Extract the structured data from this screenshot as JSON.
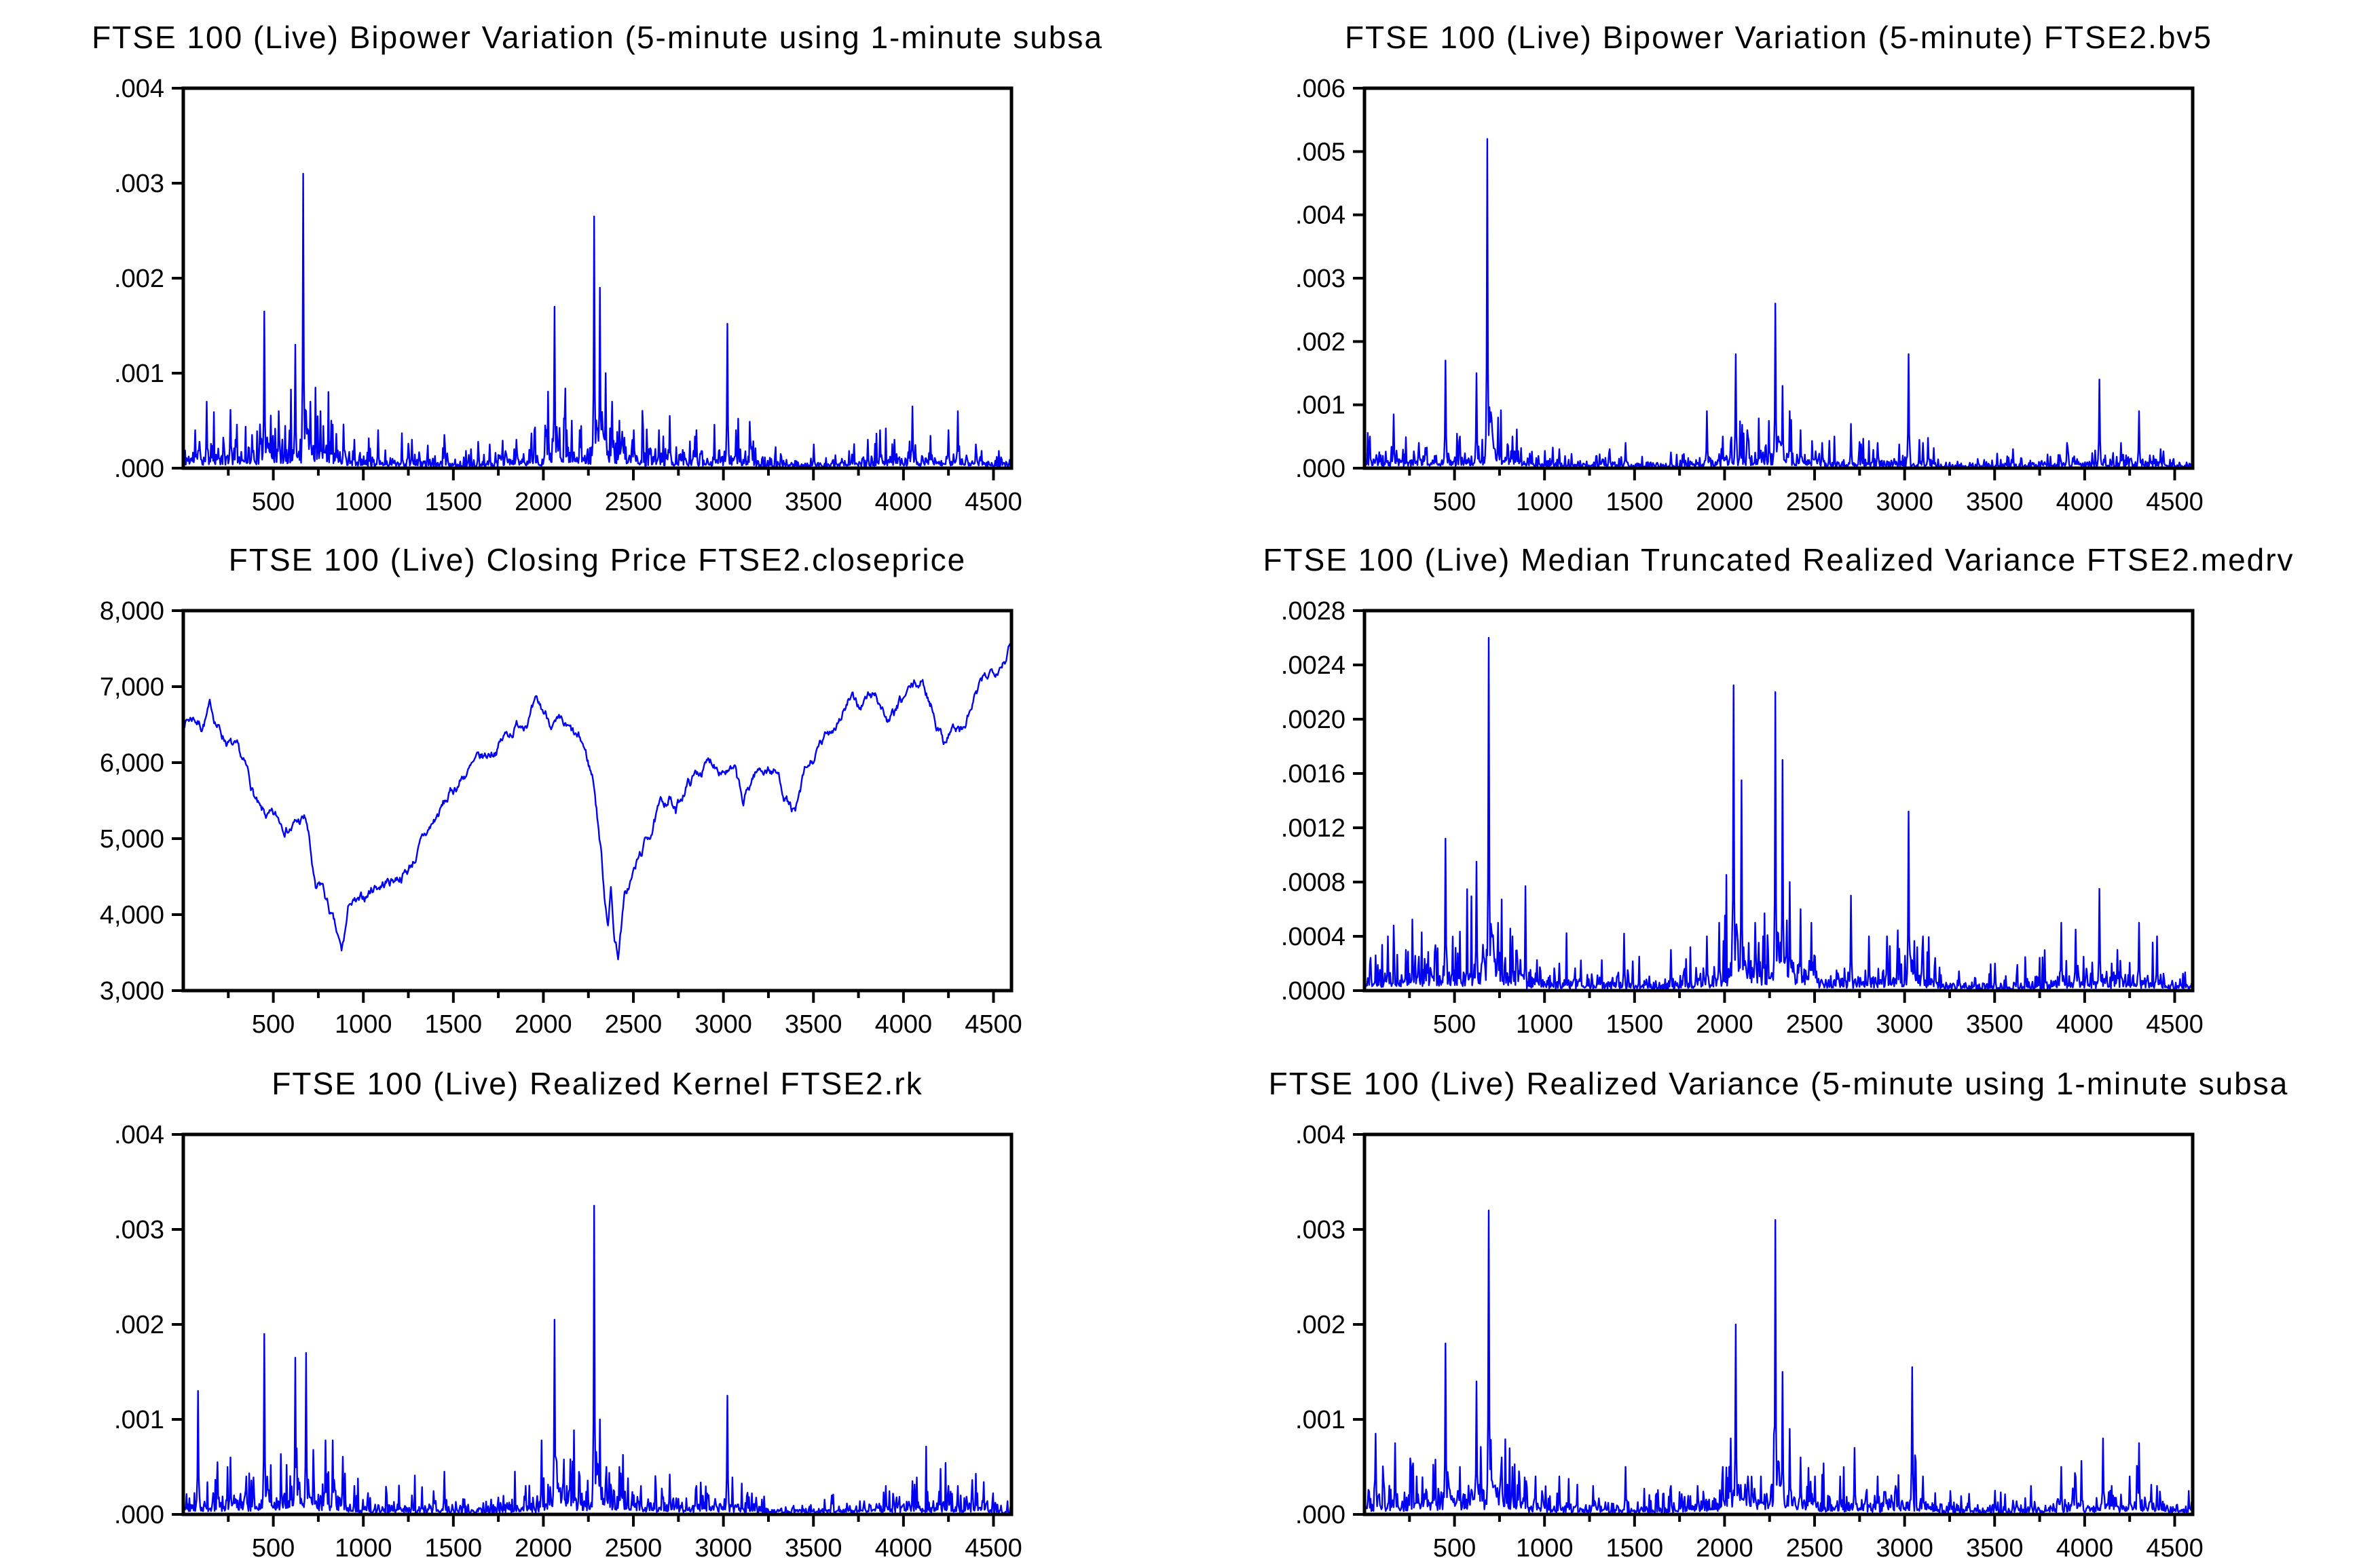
{
  "page": {
    "background": "#ffffff",
    "line_color": "#0202f2",
    "axis_color": "#000000"
  },
  "chart_data": [
    {
      "id": "bv5ss",
      "type": "line",
      "title": "FTSE 100 (Live) Bipower Variation (5-minute using 1-minute subsa",
      "xlabel": "",
      "ylabel": "",
      "xlim": [
        0,
        4600
      ],
      "ylim": [
        0,
        0.004
      ],
      "xticks": [
        500,
        1000,
        1500,
        2000,
        2500,
        3000,
        3500,
        4000,
        4500
      ],
      "yticks": [
        ".000",
        ".001",
        ".002",
        ".003",
        ".004"
      ],
      "grid": false,
      "legend": "none",
      "baseline": 5.5e-05,
      "seed": 11,
      "spikes": [
        [
          65,
          0.0004
        ],
        [
          130,
          0.0007
        ],
        [
          290,
          0.0003
        ],
        [
          380,
          0.00035
        ],
        [
          450,
          0.00165
        ],
        [
          530,
          0.0006
        ],
        [
          620,
          0.0013
        ],
        [
          665,
          0.0031
        ],
        [
          705,
          0.0007
        ],
        [
          760,
          0.0006
        ],
        [
          820,
          0.0005
        ],
        [
          950,
          0.0003
        ],
        [
          1080,
          0.0004
        ],
        [
          1270,
          0.0003
        ],
        [
          1450,
          0.00035
        ],
        [
          1700,
          0.00025
        ],
        [
          1850,
          0.0003
        ],
        [
          1950,
          0.0004
        ],
        [
          2010,
          0.00045
        ],
        [
          2060,
          0.0017
        ],
        [
          2130,
          0.0004
        ],
        [
          2200,
          0.0004
        ],
        [
          2280,
          0.00265
        ],
        [
          2312,
          0.0019
        ],
        [
          2345,
          0.001
        ],
        [
          2380,
          0.0007
        ],
        [
          2420,
          0.0005
        ],
        [
          2500,
          0.0004
        ],
        [
          2640,
          0.0004
        ],
        [
          2700,
          0.00055
        ],
        [
          2850,
          0.0004
        ],
        [
          2950,
          0.0003
        ],
        [
          3020,
          0.00152
        ],
        [
          3070,
          0.0004
        ],
        [
          3150,
          0.0003
        ],
        [
          3500,
          0.00025
        ],
        [
          3800,
          0.0003
        ],
        [
          3870,
          0.0004
        ],
        [
          3950,
          0.0003
        ],
        [
          4050,
          0.00065
        ],
        [
          4150,
          0.0003
        ],
        [
          4250,
          0.0004
        ],
        [
          4300,
          0.0006
        ],
        [
          4400,
          0.00025
        ]
      ]
    },
    {
      "id": "bv5",
      "type": "line",
      "title": "FTSE 100 (Live) Bipower Variation (5-minute) FTSE2.bv5",
      "xlabel": "",
      "ylabel": "",
      "xlim": [
        0,
        4600
      ],
      "ylim": [
        0,
        0.006
      ],
      "xticks": [
        500,
        1000,
        1500,
        2000,
        2500,
        3000,
        3500,
        4000,
        4500
      ],
      "yticks": [
        ".000",
        ".001",
        ".002",
        ".003",
        ".004",
        ".005",
        ".006"
      ],
      "grid": false,
      "legend": "none",
      "baseline": 5e-05,
      "seed": 23,
      "spikes": [
        [
          30,
          0.0005
        ],
        [
          160,
          0.00085
        ],
        [
          300,
          0.0004
        ],
        [
          450,
          0.0017
        ],
        [
          530,
          0.0005
        ],
        [
          620,
          0.0015
        ],
        [
          680,
          0.0052
        ],
        [
          740,
          0.0008
        ],
        [
          820,
          0.0005
        ],
        [
          1080,
          0.0003
        ],
        [
          1360,
          0.0003
        ],
        [
          1450,
          0.0004
        ],
        [
          1700,
          0.00025
        ],
        [
          1900,
          0.0009
        ],
        [
          1990,
          0.0005
        ],
        [
          2060,
          0.0018
        ],
        [
          2130,
          0.0005
        ],
        [
          2280,
          0.0026
        ],
        [
          2320,
          0.0013
        ],
        [
          2360,
          0.0009
        ],
        [
          2420,
          0.0006
        ],
        [
          2540,
          0.0004
        ],
        [
          2700,
          0.0007
        ],
        [
          2850,
          0.0004
        ],
        [
          3020,
          0.0018
        ],
        [
          3100,
          0.0004
        ],
        [
          3600,
          0.0003
        ],
        [
          3900,
          0.0004
        ],
        [
          4080,
          0.0014
        ],
        [
          4200,
          0.0004
        ],
        [
          4300,
          0.0009
        ],
        [
          4420,
          0.0003
        ]
      ]
    },
    {
      "id": "closeprice",
      "type": "line",
      "title": "FTSE 100 (Live) Closing Price FTSE2.closeprice",
      "xlabel": "",
      "ylabel": "",
      "xlim": [
        0,
        4600
      ],
      "ylim": [
        3000,
        8000
      ],
      "xticks": [
        500,
        1000,
        1500,
        2000,
        2500,
        3000,
        3500,
        4000,
        4500
      ],
      "yticks": [
        "3,000",
        "4,000",
        "5,000",
        "6,000",
        "7,000",
        "8,000"
      ],
      "grid": false,
      "legend": "none",
      "noise": 52,
      "seed": 7,
      "anchors": [
        [
          3,
          6550
        ],
        [
          60,
          6620
        ],
        [
          100,
          6500
        ],
        [
          150,
          6720
        ],
        [
          210,
          6400
        ],
        [
          260,
          6250
        ],
        [
          300,
          6100
        ],
        [
          360,
          5800
        ],
        [
          430,
          5300
        ],
        [
          500,
          5220
        ],
        [
          600,
          5180
        ],
        [
          680,
          5250
        ],
        [
          700,
          4950
        ],
        [
          735,
          4250
        ],
        [
          770,
          4350
        ],
        [
          830,
          3900
        ],
        [
          880,
          3450
        ],
        [
          925,
          4150
        ],
        [
          980,
          4100
        ],
        [
          1060,
          4380
        ],
        [
          1150,
          4450
        ],
        [
          1250,
          4600
        ],
        [
          1340,
          5000
        ],
        [
          1450,
          5450
        ],
        [
          1560,
          5850
        ],
        [
          1680,
          6050
        ],
        [
          1790,
          6350
        ],
        [
          1900,
          6600
        ],
        [
          1960,
          6720
        ],
        [
          2020,
          6600
        ],
        [
          2080,
          6480
        ],
        [
          2150,
          6350
        ],
        [
          2220,
          6200
        ],
        [
          2280,
          5750
        ],
        [
          2320,
          4850
        ],
        [
          2340,
          4250
        ],
        [
          2360,
          3950
        ],
        [
          2375,
          4350
        ],
        [
          2395,
          3700
        ],
        [
          2415,
          3500
        ],
        [
          2450,
          4200
        ],
        [
          2510,
          4600
        ],
        [
          2570,
          4950
        ],
        [
          2640,
          5350
        ],
        [
          2700,
          5570
        ],
        [
          2735,
          5320
        ],
        [
          2790,
          5700
        ],
        [
          2870,
          5900
        ],
        [
          2940,
          6020
        ],
        [
          3010,
          5960
        ],
        [
          3070,
          5820
        ],
        [
          3110,
          5420
        ],
        [
          3170,
          5850
        ],
        [
          3240,
          5950
        ],
        [
          3300,
          5850
        ],
        [
          3350,
          5550
        ],
        [
          3400,
          5300
        ],
        [
          3450,
          5800
        ],
        [
          3520,
          6100
        ],
        [
          3580,
          6350
        ],
        [
          3640,
          6600
        ],
        [
          3700,
          6820
        ],
        [
          3750,
          6720
        ],
        [
          3800,
          6850
        ],
        [
          3850,
          6900
        ],
        [
          3920,
          6520
        ],
        [
          3970,
          6700
        ],
        [
          4040,
          6950
        ],
        [
          4100,
          7050
        ],
        [
          4160,
          6750
        ],
        [
          4220,
          6300
        ],
        [
          4270,
          6500
        ],
        [
          4330,
          6400
        ],
        [
          4400,
          6850
        ],
        [
          4460,
          7100
        ],
        [
          4520,
          7300
        ],
        [
          4600,
          7560
        ]
      ]
    },
    {
      "id": "medrv",
      "type": "line",
      "title": "FTSE 100 (Live) Median Truncated Realized Variance FTSE2.medrv",
      "xlabel": "",
      "ylabel": "",
      "xlim": [
        0,
        4600
      ],
      "ylim": [
        0,
        0.0028
      ],
      "xticks": [
        500,
        1000,
        1500,
        2000,
        2500,
        3000,
        3500,
        4000,
        4500
      ],
      "yticks": [
        ".0000",
        ".0004",
        ".0008",
        ".0012",
        ".0016",
        ".0020",
        ".0024",
        ".0028"
      ],
      "grid": false,
      "legend": "none",
      "baseline": 4.5e-05,
      "seed": 37,
      "spikes": [
        [
          130,
          0.0004
        ],
        [
          230,
          0.0003
        ],
        [
          300,
          0.00025
        ],
        [
          450,
          0.00112
        ],
        [
          530,
          0.0003
        ],
        [
          620,
          0.00095
        ],
        [
          690,
          0.0026
        ],
        [
          740,
          0.0005
        ],
        [
          820,
          0.0004
        ],
        [
          1080,
          0.0002
        ],
        [
          1440,
          0.00042
        ],
        [
          1700,
          0.0003
        ],
        [
          1900,
          0.0004
        ],
        [
          1970,
          0.0005
        ],
        [
          2050,
          0.00225
        ],
        [
          2095,
          0.00155
        ],
        [
          2170,
          0.0005
        ],
        [
          2280,
          0.0022
        ],
        [
          2320,
          0.0017
        ],
        [
          2360,
          0.0008
        ],
        [
          2420,
          0.0006
        ],
        [
          2480,
          0.0005
        ],
        [
          2700,
          0.0007
        ],
        [
          2800,
          0.0004
        ],
        [
          2900,
          0.0004
        ],
        [
          3020,
          0.00132
        ],
        [
          3100,
          0.0004
        ],
        [
          3500,
          0.0002
        ],
        [
          3870,
          0.0005
        ],
        [
          3950,
          0.00045
        ],
        [
          4080,
          0.00075
        ],
        [
          4180,
          0.0003
        ],
        [
          4300,
          0.0005
        ],
        [
          4400,
          0.0004
        ]
      ]
    },
    {
      "id": "rk",
      "type": "line",
      "title": "FTSE 100 (Live) Realized Kernel FTSE2.rk",
      "xlabel": "",
      "ylabel": "",
      "xlim": [
        0,
        4600
      ],
      "ylim": [
        0,
        0.004
      ],
      "xticks": [
        500,
        1000,
        1500,
        2000,
        2500,
        3000,
        3500,
        4000,
        4500
      ],
      "yticks": [
        ".000",
        ".001",
        ".002",
        ".003",
        ".004"
      ],
      "grid": false,
      "legend": "none",
      "baseline": 5e-05,
      "seed": 51,
      "spikes": [
        [
          80,
          0.0013
        ],
        [
          190,
          0.00055
        ],
        [
          260,
          0.0006
        ],
        [
          350,
          0.0004
        ],
        [
          450,
          0.0019
        ],
        [
          540,
          0.0004
        ],
        [
          620,
          0.00165
        ],
        [
          680,
          0.0017
        ],
        [
          790,
          0.00078
        ],
        [
          830,
          0.00078
        ],
        [
          950,
          0.0003
        ],
        [
          1270,
          0.0002
        ],
        [
          1450,
          0.00045
        ],
        [
          1900,
          0.0003
        ],
        [
          1990,
          0.00078
        ],
        [
          2060,
          0.00205
        ],
        [
          2130,
          0.0003
        ],
        [
          2200,
          0.0004
        ],
        [
          2280,
          0.00325
        ],
        [
          2315,
          0.001
        ],
        [
          2350,
          0.0005
        ],
        [
          2420,
          0.0005
        ],
        [
          2540,
          0.0003
        ],
        [
          2700,
          0.00042
        ],
        [
          2850,
          0.0003
        ],
        [
          3020,
          0.00125
        ],
        [
          3100,
          0.0002
        ],
        [
          3600,
          0.0002
        ],
        [
          3900,
          0.0003
        ],
        [
          4050,
          0.00035
        ],
        [
          4250,
          0.0003
        ],
        [
          4300,
          0.0003
        ]
      ]
    },
    {
      "id": "rv5ss",
      "type": "line",
      "title": "FTSE 100 (Live) Realized Variance (5-minute using 1-minute subsa",
      "xlabel": "",
      "ylabel": "",
      "xlim": [
        0,
        4600
      ],
      "ylim": [
        0,
        0.004
      ],
      "xticks": [
        500,
        1000,
        1500,
        2000,
        2500,
        3000,
        3500,
        4000,
        4500
      ],
      "yticks": [
        ".000",
        ".001",
        ".002",
        ".003",
        ".004"
      ],
      "grid": false,
      "legend": "none",
      "baseline": 6e-05,
      "seed": 63,
      "spikes": [
        [
          60,
          0.00085
        ],
        [
          170,
          0.00075
        ],
        [
          290,
          0.0004
        ],
        [
          380,
          0.0004
        ],
        [
          450,
          0.0018
        ],
        [
          530,
          0.0005
        ],
        [
          620,
          0.0014
        ],
        [
          690,
          0.0032
        ],
        [
          760,
          0.0006
        ],
        [
          820,
          0.0005
        ],
        [
          950,
          0.0004
        ],
        [
          1080,
          0.0004
        ],
        [
          1270,
          0.0003
        ],
        [
          1450,
          0.0005
        ],
        [
          1700,
          0.0003
        ],
        [
          1850,
          0.0003
        ],
        [
          1990,
          0.0005
        ],
        [
          2035,
          0.0008
        ],
        [
          2060,
          0.002
        ],
        [
          2130,
          0.0004
        ],
        [
          2200,
          0.0004
        ],
        [
          2280,
          0.0031
        ],
        [
          2320,
          0.0015
        ],
        [
          2360,
          0.0009
        ],
        [
          2420,
          0.0006
        ],
        [
          2500,
          0.0004
        ],
        [
          2640,
          0.0004
        ],
        [
          2720,
          0.0007
        ],
        [
          2850,
          0.0004
        ],
        [
          2950,
          0.0003
        ],
        [
          3040,
          0.00155
        ],
        [
          3100,
          0.0004
        ],
        [
          3500,
          0.00025
        ],
        [
          3700,
          0.0003
        ],
        [
          3870,
          0.0005
        ],
        [
          3950,
          0.0004
        ],
        [
          4100,
          0.0008
        ],
        [
          4150,
          0.0003
        ],
        [
          4250,
          0.0004
        ],
        [
          4300,
          0.00075
        ],
        [
          4400,
          0.0003
        ]
      ]
    }
  ],
  "volatility_regions": [
    [
      0,
      250,
      2.2
    ],
    [
      250,
      560,
      2.8
    ],
    [
      560,
      900,
      3.2
    ],
    [
      900,
      1350,
      1.3
    ],
    [
      1350,
      1550,
      1.0
    ],
    [
      1550,
      1750,
      0.9
    ],
    [
      1750,
      2000,
      1.7
    ],
    [
      2000,
      2520,
      3.2
    ],
    [
      2520,
      2950,
      1.7
    ],
    [
      2950,
      3180,
      2.0
    ],
    [
      3180,
      3560,
      0.8
    ],
    [
      3560,
      3820,
      1.0
    ],
    [
      3820,
      4460,
      1.6
    ],
    [
      4460,
      4600,
      0.9
    ]
  ]
}
